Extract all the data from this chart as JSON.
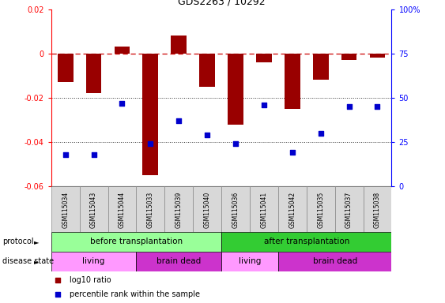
{
  "title": "GDS2263 / 10292",
  "samples": [
    "GSM115034",
    "GSM115043",
    "GSM115044",
    "GSM115033",
    "GSM115039",
    "GSM115040",
    "GSM115036",
    "GSM115041",
    "GSM115042",
    "GSM115035",
    "GSM115037",
    "GSM115038"
  ],
  "log10_ratio": [
    -0.013,
    -0.018,
    0.003,
    -0.055,
    0.008,
    -0.015,
    -0.032,
    -0.004,
    -0.025,
    -0.012,
    -0.003,
    -0.002
  ],
  "percentile_rank": [
    18,
    18,
    47,
    24,
    37,
    29,
    24,
    46,
    19,
    30,
    45,
    45
  ],
  "ylim_left": [
    -0.06,
    0.02
  ],
  "ylim_right": [
    0,
    100
  ],
  "yticks_left": [
    -0.06,
    -0.04,
    -0.02,
    0.0,
    0.02
  ],
  "yticks_right": [
    0,
    25,
    50,
    75,
    100
  ],
  "bar_color": "#990000",
  "dot_color": "#0000cc",
  "dashed_line_color": "#cc0000",
  "dotted_line_color": "#333333",
  "protocol_before_color": "#99ff99",
  "protocol_after_color": "#33cc33",
  "disease_living_color": "#ff99ff",
  "disease_brain_color": "#cc33cc",
  "protocol_before_label": "before transplantation",
  "protocol_after_label": "after transplantation",
  "living_label": "living",
  "brain_dead_label": "brain dead",
  "protocol_label": "protocol",
  "disease_label": "disease state",
  "legend_red": "log10 ratio",
  "legend_blue": "percentile rank within the sample"
}
